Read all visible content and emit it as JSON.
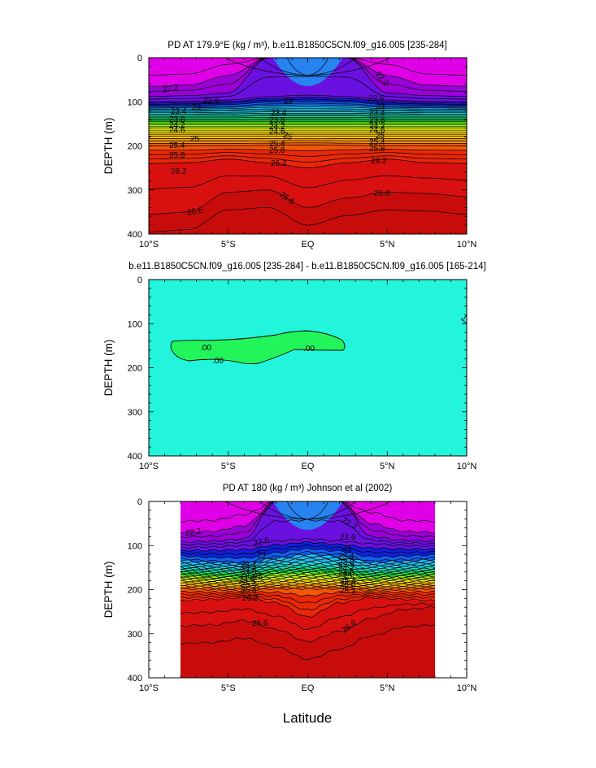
{
  "figure": {
    "xlabel": "Latitude",
    "colors": {
      "magenta": "#E000E8",
      "purple": "#9A00D8",
      "violet": "#6A10E0",
      "navy": "#1020D8",
      "blue": "#1060F0",
      "azure": "#1A98F2",
      "sky": "#22B8F0",
      "cyan": "#20D8E8",
      "teal": "#18E0B0",
      "green": "#10E868",
      "lime": "#40F028",
      "yellowgreen": "#A8F018",
      "yellow": "#F0F010",
      "gold": "#F8C808",
      "orange": "#F89008",
      "orangered": "#F05808",
      "red": "#E82808",
      "crimson": "#D81010",
      "darkred": "#C80C0C",
      "diffBg": "#22F5DB",
      "diffPatch": "#22F55A"
    }
  },
  "chart_data": [
    {
      "type": "contour",
      "title": "PD AT 179.9°E (kg / m³), b.e11.B1850C5CN.f09_g16.005 [235-284]",
      "xlabel": "Latitude",
      "ylabel": "DEPTH (m)",
      "xlim": [
        -10,
        10
      ],
      "ylim": [
        400,
        0
      ],
      "xticks": [
        "10°S",
        "5°S",
        "EQ",
        "5°N",
        "10°N"
      ],
      "yticks": [
        "0",
        "100",
        "200",
        "300",
        "400"
      ],
      "contour_labels": [
        "22.2",
        "22.6",
        "23",
        "23.4",
        "23.8",
        "24.2",
        "24.6",
        "25",
        "25.4",
        "25.8",
        "26.2",
        "26.6"
      ],
      "contours": [
        {
          "level": 22.2,
          "depth": [
            65,
            62,
            40,
            0,
            0,
            0,
            40,
            62,
            65
          ]
        },
        {
          "level": 22.6,
          "depth": [
            88,
            86,
            80,
            0,
            0,
            0,
            80,
            86,
            88
          ]
        },
        {
          "level": 23.0,
          "depth": [
            100,
            99,
            96,
            88,
            85,
            88,
            96,
            99,
            100
          ]
        },
        {
          "level": 23.4,
          "depth": [
            112,
            111,
            110,
            105,
            103,
            105,
            110,
            111,
            112
          ]
        },
        {
          "level": 23.8,
          "depth": [
            122,
            122,
            121,
            120,
            120,
            120,
            121,
            122,
            122
          ]
        },
        {
          "level": 24.2,
          "depth": [
            133,
            133,
            133,
            132,
            132,
            132,
            133,
            133,
            133
          ]
        },
        {
          "level": 24.6,
          "depth": [
            145,
            145,
            145,
            145,
            145,
            145,
            145,
            145,
            145
          ]
        },
        {
          "level": 25.0,
          "depth": [
            160,
            160,
            160,
            160,
            160,
            160,
            160,
            160,
            160
          ]
        },
        {
          "level": 25.4,
          "depth": [
            178,
            178,
            178,
            178,
            178,
            178,
            178,
            178,
            178
          ]
        },
        {
          "level": 25.8,
          "depth": [
            200,
            200,
            200,
            199,
            198,
            199,
            200,
            200,
            200
          ]
        },
        {
          "level": 26.2,
          "depth": [
            240,
            238,
            230,
            238,
            250,
            238,
            230,
            238,
            240
          ]
        },
        {
          "level": 26.6,
          "depth": [
            355,
            350,
            305,
            300,
            340,
            318,
            305,
            308,
            315
          ]
        }
      ]
    },
    {
      "type": "contour",
      "title": "b.e11.B1850C5CN.f09_g16.005 [235-284] - b.e11.B1850C5CN.f09_g16.005 [165-214]",
      "xlabel": "Latitude",
      "ylabel": "DEPTH (m)",
      "xlim": [
        -10,
        10
      ],
      "ylim": [
        400,
        0
      ],
      "xticks": [
        "10°S",
        "5°S",
        "EQ",
        "5°N",
        "10°N"
      ],
      "yticks": [
        "0",
        "100",
        "200",
        "300",
        "400"
      ],
      "contour_labels": [
        ".00",
        ".00",
        ".00"
      ],
      "contours": [
        {
          "level": 0.0,
          "region": "lat -9.5 to 2.3, depth 130-195"
        }
      ]
    },
    {
      "type": "contour",
      "title": "PD AT 180 (kg / m³) Johnson et al (2002)",
      "xlabel": "Latitude",
      "ylabel": "DEPTH (m)",
      "xlim": [
        -10,
        10
      ],
      "ylim": [
        400,
        0
      ],
      "data_xlim": [
        -8,
        8
      ],
      "xticks": [
        "10°S",
        "5°S",
        "EQ",
        "5°N",
        "10°N"
      ],
      "yticks": [
        "0",
        "100",
        "200",
        "300",
        "400"
      ],
      "contour_labels": [
        "22.2",
        "22.6",
        "23",
        "23.4",
        "23.8",
        "24.2",
        "24.6",
        "25",
        "25.4",
        "25.8",
        "26.2",
        "26.6"
      ],
      "contours": [
        {
          "level": 22.2,
          "depth": [
            70,
            68,
            55,
            0,
            0,
            0,
            50,
            68,
            70
          ]
        },
        {
          "level": 22.6,
          "depth": [
            92,
            90,
            85,
            0,
            0,
            0,
            80,
            88,
            90
          ]
        },
        {
          "level": 23.0,
          "depth": [
            105,
            103,
            100,
            90,
            85,
            90,
            96,
            100,
            102
          ]
        },
        {
          "level": 23.4,
          "depth": [
            130,
            135,
            138,
            125,
            115,
            120,
            135,
            132,
            128
          ]
        },
        {
          "level": 23.8,
          "depth": [
            145,
            148,
            150,
            140,
            135,
            138,
            148,
            146,
            143
          ]
        },
        {
          "level": 24.2,
          "depth": [
            155,
            158,
            160,
            152,
            150,
            152,
            160,
            157,
            155
          ]
        },
        {
          "level": 24.6,
          "depth": [
            165,
            168,
            170,
            162,
            160,
            162,
            170,
            167,
            165
          ]
        },
        {
          "level": 25.0,
          "depth": [
            175,
            178,
            180,
            174,
            172,
            174,
            180,
            177,
            175
          ]
        },
        {
          "level": 25.4,
          "depth": [
            186,
            188,
            190,
            186,
            185,
            186,
            190,
            188,
            186
          ]
        },
        {
          "level": 25.8,
          "depth": [
            198,
            200,
            202,
            198,
            198,
            198,
            202,
            200,
            198
          ]
        },
        {
          "level": 26.2,
          "depth": [
            225,
            222,
            218,
            230,
            262,
            230,
            218,
            222,
            225
          ]
        },
        {
          "level": 26.6,
          "depth": [
            282,
            280,
            270,
            290,
            318,
            295,
            265,
            245,
            240
          ]
        }
      ]
    }
  ]
}
